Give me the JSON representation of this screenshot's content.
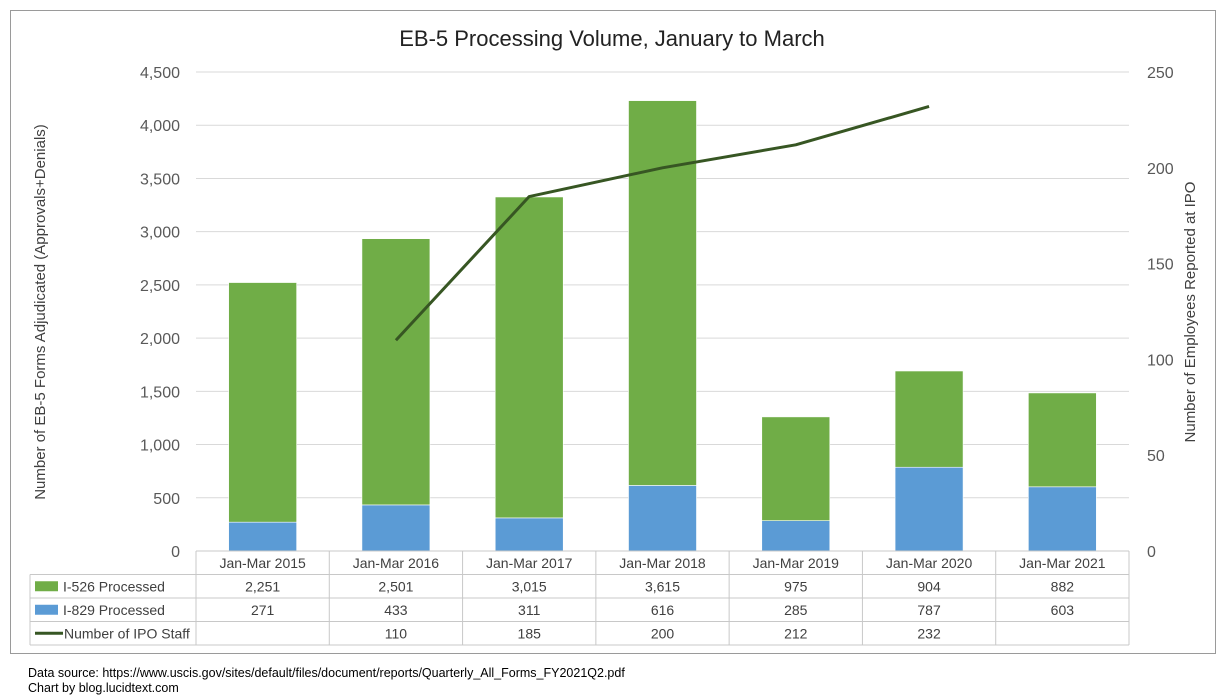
{
  "chart_data": {
    "type": "bar",
    "stacked": true,
    "title": "EB-5 Processing Volume, January to March",
    "ylabel": "Number of EB-5 Forms Adjudicated (Approvals+Denials)",
    "y2label": "Number of Employees Reported at IPO",
    "ylim": [
      0,
      4500
    ],
    "y2lim": [
      0,
      250
    ],
    "yticks": [
      "0",
      "500",
      "1,000",
      "1,500",
      "2,000",
      "2,500",
      "3,000",
      "3,500",
      "4,000",
      "4,500"
    ],
    "y2ticks": [
      "0",
      "50",
      "100",
      "150",
      "200",
      "250"
    ],
    "categories": [
      "Jan-Mar 2015",
      "Jan-Mar 2016",
      "Jan-Mar 2017",
      "Jan-Mar 2018",
      "Jan-Mar 2019",
      "Jan-Mar 2020",
      "Jan-Mar 2021"
    ],
    "grid": true,
    "legend": "data-table",
    "series": [
      {
        "name": "I-526 Processed",
        "type": "bar",
        "color": "#70ad47",
        "values": [
          2251,
          2501,
          3015,
          3615,
          975,
          904,
          882
        ],
        "labels": [
          "2,251",
          "2,501",
          "3,015",
          "3,615",
          "975",
          "904",
          "882"
        ]
      },
      {
        "name": "I-829 Processed",
        "type": "bar",
        "color": "#5b9bd5",
        "values": [
          271,
          433,
          311,
          616,
          285,
          787,
          603
        ],
        "labels": [
          "271",
          "433",
          "311",
          "616",
          "285",
          "787",
          "603"
        ]
      },
      {
        "name": "Number of IPO Staff",
        "type": "line",
        "axis": "secondary",
        "color": "#375623",
        "values": [
          null,
          110,
          185,
          200,
          212,
          232,
          null
        ],
        "labels": [
          "",
          "110",
          "185",
          "200",
          "212",
          "232",
          ""
        ]
      }
    ]
  },
  "source_line1": "Data source: https://www.uscis.gov/sites/default/files/document/reports/Quarterly_All_Forms_FY2021Q2.pdf",
  "source_line2": "Chart by blog.lucidtext.com"
}
